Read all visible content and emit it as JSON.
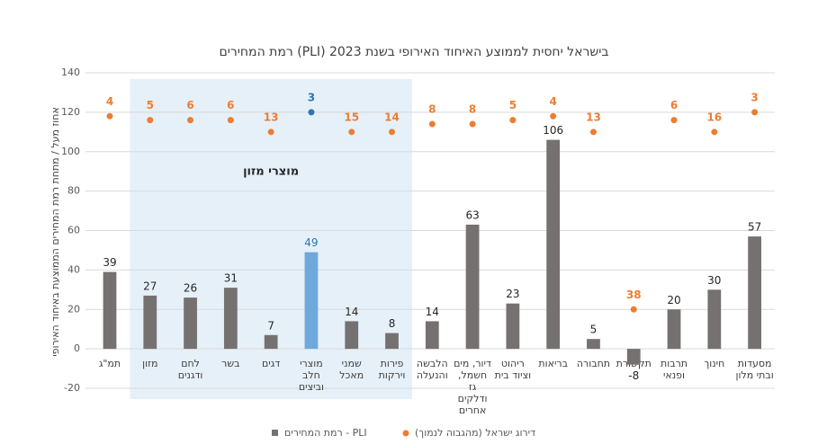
{
  "chart_data": {
    "type": "bar",
    "title": "רמת המחירים (PLI) בישראל יחסית לממוצע האיחוד האירופי בשנת 2023",
    "y_label": "אחוז מעל / מתחת רמת המחירים הממוצעת באיחוד האירופי",
    "annotation": "מוצרי מזון",
    "categories": [
      "תמ\"ג",
      "מזון",
      "לחם\nודגנים",
      "בשר",
      "דגים",
      "מוצרי\nחלב\nוביצים",
      "שמני\nמאכל",
      "פירות\nוירקות",
      "הלבשה\nוהנעלה",
      "דיור, מים\nחשמל,\nגז\nודלקים\nאחרים",
      "ריהוט\nוציוד בית",
      "בריאות",
      "תחבורה",
      "תקשורת",
      "תרבות\nופנאי",
      "חינוך",
      "מסעדות\nובתי מלון"
    ],
    "series": [
      {
        "name": "רמת המחירים - PLI",
        "type": "bar",
        "color": "#767171",
        "colors": [
          "#767171",
          "#767171",
          "#767171",
          "#767171",
          "#767171",
          "#6fa8dc",
          "#767171",
          "#767171",
          "#767171",
          "#767171",
          "#767171",
          "#767171",
          "#767171",
          "#767171",
          "#767171",
          "#767171",
          "#767171"
        ],
        "values": [
          39,
          27,
          26,
          31,
          7,
          49,
          14,
          8,
          14,
          63,
          23,
          106,
          5,
          -8,
          20,
          30,
          57
        ]
      },
      {
        "name": "דירוג ישראל (מהגבוה לנמוך)",
        "type": "scatter",
        "color": "#ed7d31",
        "colors": [
          "#ed7d31",
          "#ed7d31",
          "#ed7d31",
          "#ed7d31",
          "#ed7d31",
          "#2e75b6",
          "#ed7d31",
          "#ed7d31",
          "#ed7d31",
          "#ed7d31",
          "#ed7d31",
          "#ed7d31",
          "#ed7d31",
          "#ed7d31",
          "#ed7d31",
          "#ed7d31",
          "#ed7d31"
        ],
        "values": [
          118,
          116,
          116,
          116,
          110,
          120,
          110,
          110,
          114,
          114,
          116,
          118,
          110,
          20,
          116,
          110,
          120
        ],
        "ranks": [
          4,
          5,
          6,
          6,
          13,
          3,
          15,
          14,
          8,
          8,
          5,
          4,
          13,
          38,
          6,
          16,
          3
        ]
      }
    ],
    "ylim": [
      -20,
      140
    ],
    "yticks": [
      -20,
      0,
      20,
      40,
      60,
      80,
      100,
      120,
      140
    ],
    "grid": true,
    "highlight_range": [
      1,
      7
    ]
  }
}
